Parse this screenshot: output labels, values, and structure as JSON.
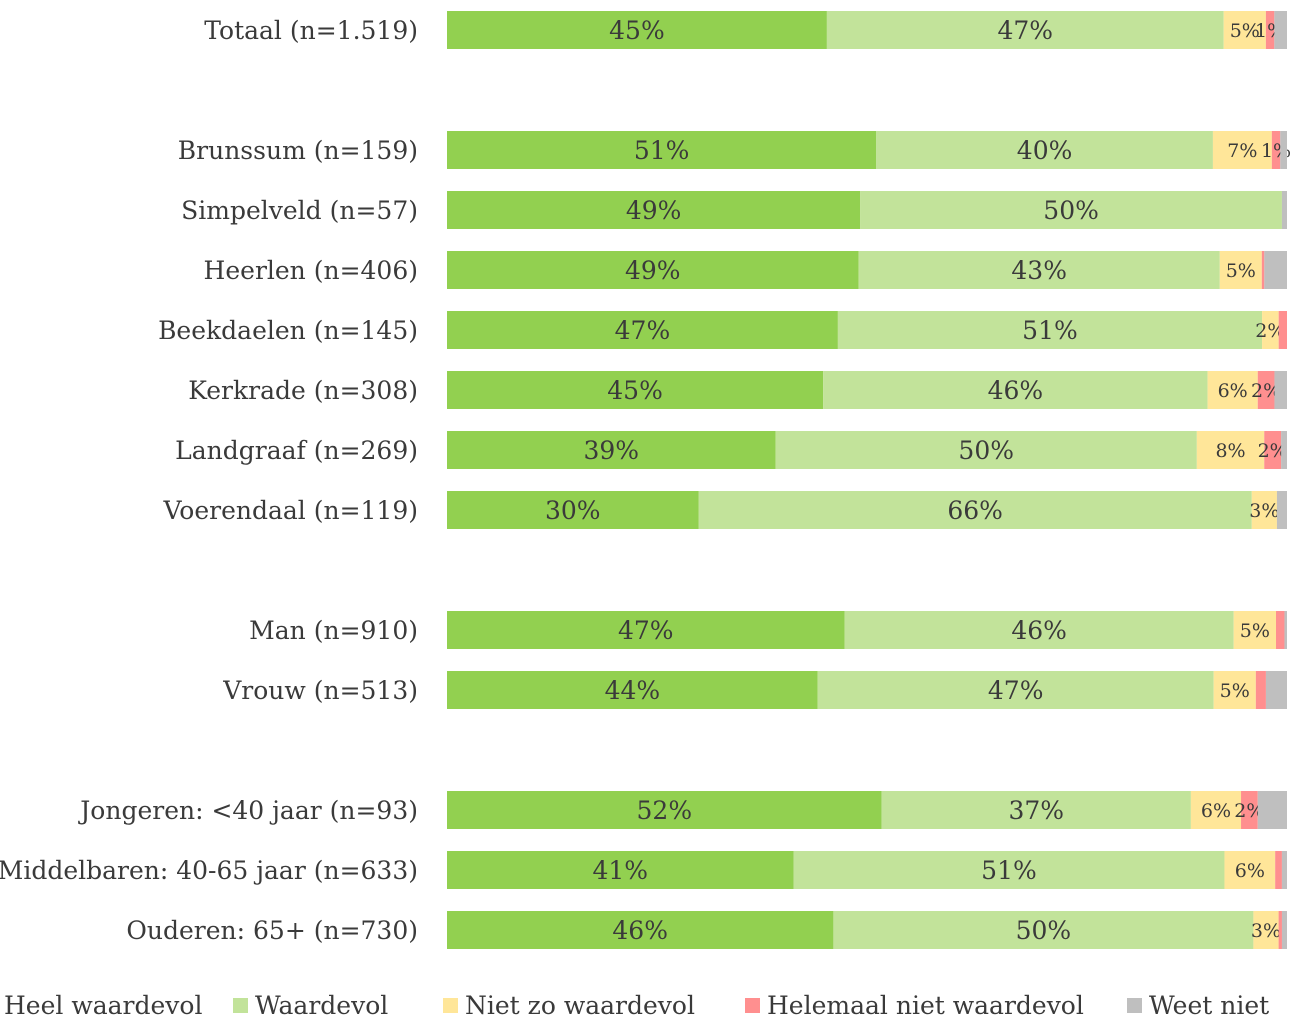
{
  "chart_data": {
    "type": "bar",
    "orientation": "horizontal",
    "stacked": true,
    "normalized": true,
    "legend_position": "bottom",
    "grid": false,
    "xlim": [
      0,
      100
    ],
    "categories": [
      "Totaal (n=1.519)",
      "Brunssum (n=159)",
      "Simpelveld (n=57)",
      "Heerlen (n=406)",
      "Beekdaelen (n=145)",
      "Kerkrade (n=308)",
      "Landgraaf (n=269)",
      "Voerendaal (n=119)",
      "Man (n=910)",
      "Vrouw (n=513)",
      "Jongeren: <40 jaar (n=93)",
      "Middelbaren: 40-65 jaar (n=633)",
      "Ouderen: 65+ (n=730)"
    ],
    "groups": [
      [
        0
      ],
      [
        1,
        2,
        3,
        4,
        5,
        6,
        7
      ],
      [
        8,
        9
      ],
      [
        10,
        11,
        12
      ]
    ],
    "series": [
      {
        "name": "Heel waardevol",
        "color": "#92d050",
        "values": [
          45,
          51,
          49,
          49,
          47,
          45,
          39,
          30,
          47,
          44,
          52,
          41,
          46
        ],
        "labels": [
          "45%",
          "51%",
          "49%",
          "49%",
          "47%",
          "45%",
          "39%",
          "30%",
          "47%",
          "44%",
          "52%",
          "41%",
          "46%"
        ]
      },
      {
        "name": "Waardevol",
        "color": "#c2e39a",
        "values": [
          47,
          40,
          50,
          43,
          51,
          46,
          50,
          66,
          46,
          47,
          37,
          51,
          50
        ],
        "labels": [
          "47%",
          "40%",
          "50%",
          "43%",
          "51%",
          "46%",
          "50%",
          "66%",
          "46%",
          "47%",
          "37%",
          "51%",
          "50%"
        ]
      },
      {
        "name": "Niet zo waardevol",
        "color": "#ffe699",
        "values": [
          5,
          7,
          0,
          5,
          2,
          6,
          8,
          3,
          5,
          5,
          6,
          6,
          3
        ],
        "labels": [
          "5%",
          "7%",
          "",
          "5%",
          "2%",
          "6%",
          "8%",
          "3%",
          "5%",
          "5%",
          "6%",
          "6%",
          "3%"
        ]
      },
      {
        "name": "Helemaal niet waardevol",
        "color": "#ff8f8f",
        "values": [
          1,
          1,
          0,
          0.3,
          1,
          2,
          2,
          0,
          1,
          1.2,
          2,
          0.8,
          0.4
        ],
        "labels": [
          "1%",
          "1%",
          "",
          "",
          "",
          "2%",
          "2%",
          "",
          "",
          "",
          "2%",
          "",
          ""
        ]
      },
      {
        "name": "Weet niet",
        "color": "#bfbfbf",
        "values": [
          1.5,
          0.8,
          0.6,
          2.7,
          0,
          1.5,
          0.7,
          1.2,
          0.3,
          2.5,
          3.5,
          0.6,
          0.6
        ],
        "labels": [
          "",
          "",
          "",
          "",
          "",
          "",
          "",
          "",
          "",
          "",
          "",
          "",
          ""
        ]
      }
    ]
  }
}
